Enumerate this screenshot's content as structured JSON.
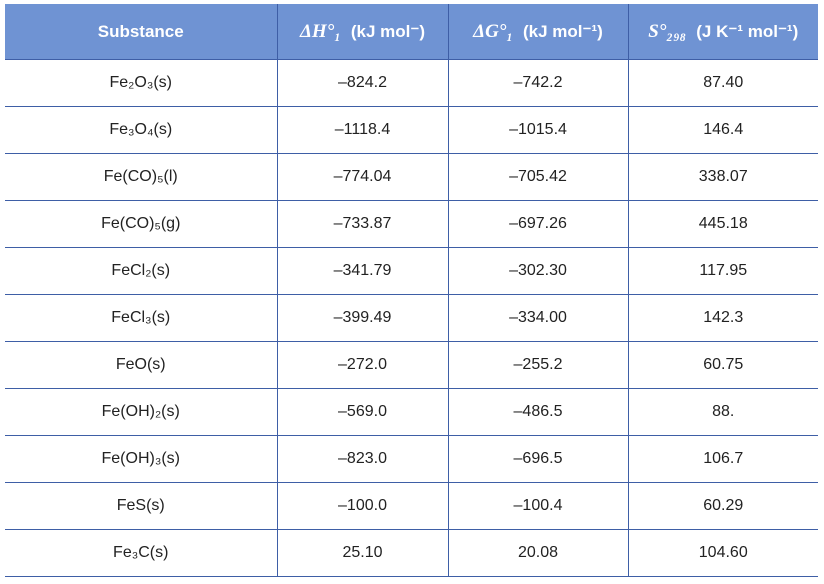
{
  "table": {
    "columns": [
      {
        "text": "Substance"
      },
      {
        "symbol": "ΔH°₁",
        "unit": "(kJ mol⁻)"
      },
      {
        "symbol": "ΔG°₁",
        "unit": "(kJ mol⁻¹)"
      },
      {
        "symbol": "S°₂₉₈",
        "unit": "(J K⁻¹ mol⁻¹)"
      }
    ],
    "rows": [
      [
        "Fe₂O₃(s)",
        "–824.2",
        "–742.2",
        "87.40"
      ],
      [
        "Fe₃O₄(s)",
        "–1118.4",
        "–1015.4",
        "146.4"
      ],
      [
        "Fe(CO)₅(l)",
        "–774.04",
        "–705.42",
        "338.07"
      ],
      [
        "Fe(CO)₅(g)",
        "–733.87",
        "–697.26",
        "445.18"
      ],
      [
        "FeCl₂(s)",
        "–341.79",
        "–302.30",
        "117.95"
      ],
      [
        "FeCl₃(s)",
        "–399.49",
        "–334.00",
        "142.3"
      ],
      [
        "FeO(s)",
        "–272.0",
        "–255.2",
        "60.75"
      ],
      [
        "Fe(OH)₂(s)",
        "–569.0",
        "–486.5",
        "88."
      ],
      [
        "Fe(OH)₃(s)",
        "–823.0",
        "–696.5",
        "106.7"
      ],
      [
        "FeS(s)",
        "–100.0",
        "–100.4",
        "60.29"
      ],
      [
        "Fe₃C(s)",
        "25.10",
        "20.08",
        "104.60"
      ]
    ]
  }
}
